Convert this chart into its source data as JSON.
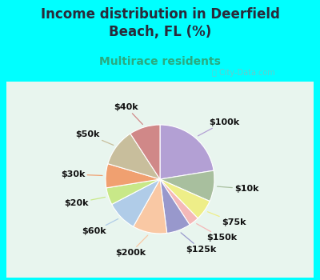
{
  "title": "Income distribution in Deerfield\nBeach, FL (%)",
  "subtitle": "Multirace residents",
  "watermark": "ⓘ City-Data.com",
  "labels": [
    "$100k",
    "$10k",
    "$75k",
    "$150k",
    "$125k",
    "$200k",
    "$60k",
    "$20k",
    "$30k",
    "$50k",
    "$40k"
  ],
  "values": [
    22,
    9,
    6,
    3,
    7,
    10,
    9,
    5,
    7,
    11,
    9
  ],
  "colors": [
    "#b3a0d4",
    "#a8bf9e",
    "#eeee88",
    "#f4b8b8",
    "#9898cc",
    "#f9c8a4",
    "#b0cce8",
    "#c8e888",
    "#f0a070",
    "#c8be9c",
    "#d08888"
  ],
  "line_colors": [
    "#b3a0d4",
    "#a8bf9e",
    "#eeee88",
    "#f4b8b8",
    "#9898cc",
    "#c8c0e0",
    "#b0cce8",
    "#c8e888",
    "#f0a070",
    "#c8be9c",
    "#d08888"
  ],
  "background_color": "#00ffff",
  "chart_bg": "#e8f5ee",
  "title_color": "#2a2a3a",
  "subtitle_color": "#2aaa80",
  "title_fontsize": 12,
  "subtitle_fontsize": 10,
  "label_fontsize": 8,
  "watermark_color": "#aaaaaa"
}
